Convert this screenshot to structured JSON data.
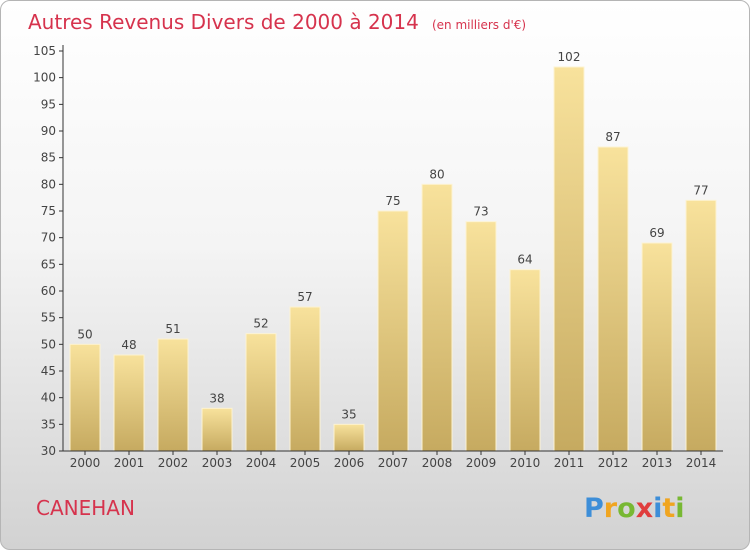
{
  "chart_data": {
    "type": "bar",
    "title": "Autres Revenus Divers de 2000 à 2014",
    "subtitle": "(en milliers d'€)",
    "categories": [
      "2000",
      "2001",
      "2002",
      "2003",
      "2004",
      "2005",
      "2006",
      "2007",
      "2008",
      "2009",
      "2010",
      "2011",
      "2012",
      "2013",
      "2014"
    ],
    "values": [
      50,
      48,
      51,
      38,
      52,
      57,
      35,
      75,
      80,
      73,
      64,
      102,
      87,
      69,
      77
    ],
    "ylim": [
      30,
      105
    ],
    "yticks": [
      30,
      35,
      40,
      45,
      50,
      55,
      60,
      65,
      70,
      75,
      80,
      85,
      90,
      95,
      100,
      105
    ],
    "grid": false,
    "colors": {
      "bar_top": "#f8e29c",
      "bar_bottom": "#c6aa60",
      "bar_edge": "#fdf3d2",
      "text": "#444444",
      "accent": "#d6334d"
    }
  },
  "location": "CANEHAN",
  "brand": {
    "letters": [
      "P",
      "r",
      "o",
      "x",
      "i",
      "t",
      "i"
    ],
    "colors": [
      "#3d8ed8",
      "#f0a520",
      "#78b833",
      "#e03d3d",
      "#3d8ed8",
      "#f0a520",
      "#78b833"
    ]
  }
}
